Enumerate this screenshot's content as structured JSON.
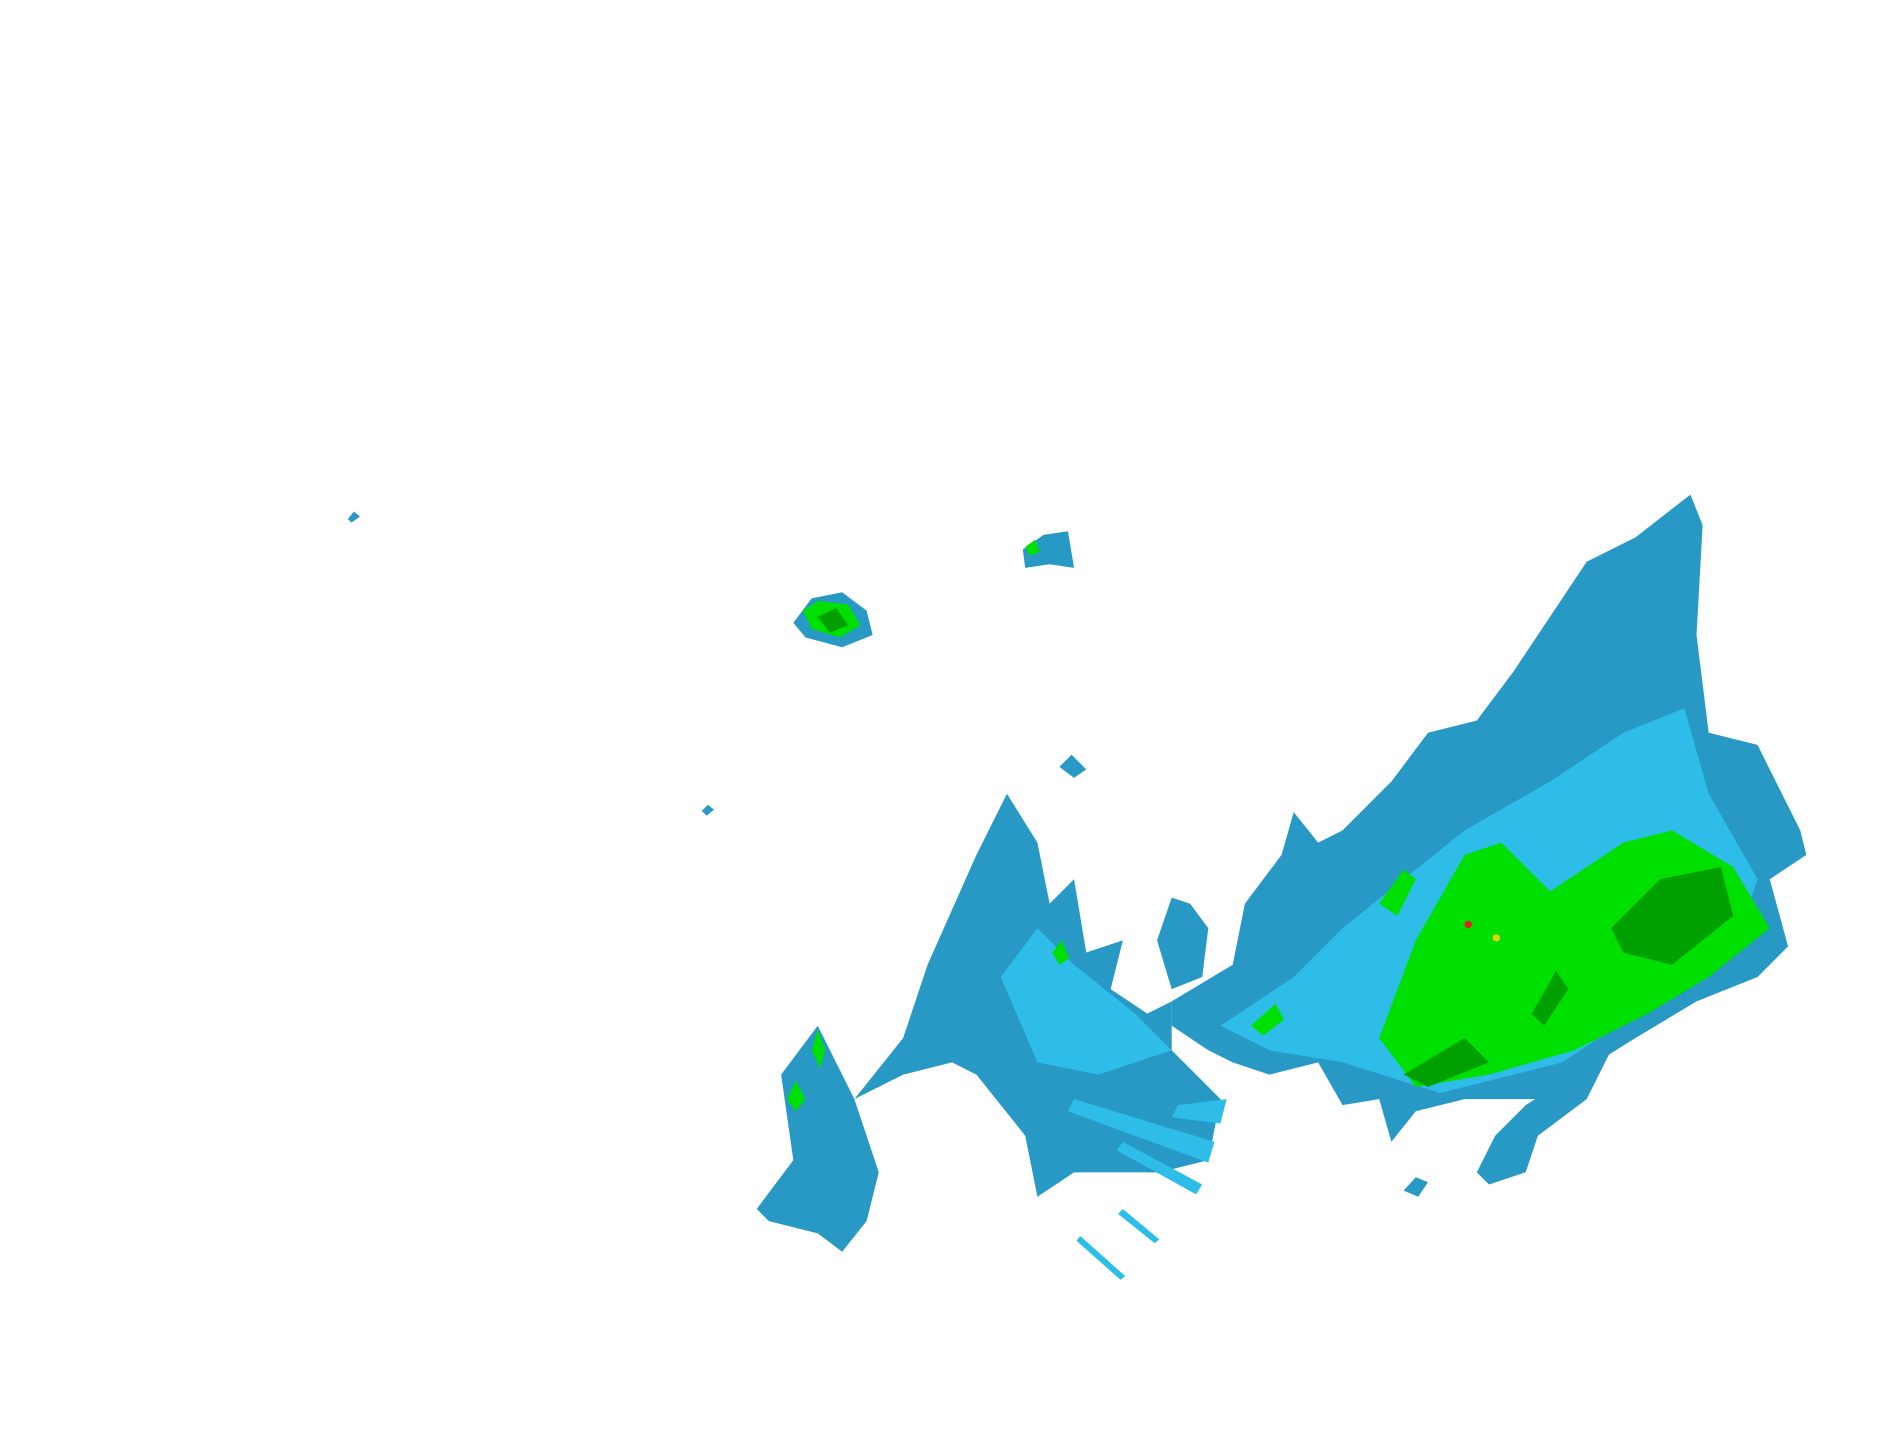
{
  "map": {
    "type": "weather-radar-reflectivity",
    "colors": {
      "background": "#ffffff",
      "level_1": "#2799c4",
      "level_2": "#2dbde8",
      "level_3": "#00e000",
      "level_4": "#00a000",
      "level_5": "#e8d000",
      "level_6": "#e02020"
    }
  }
}
